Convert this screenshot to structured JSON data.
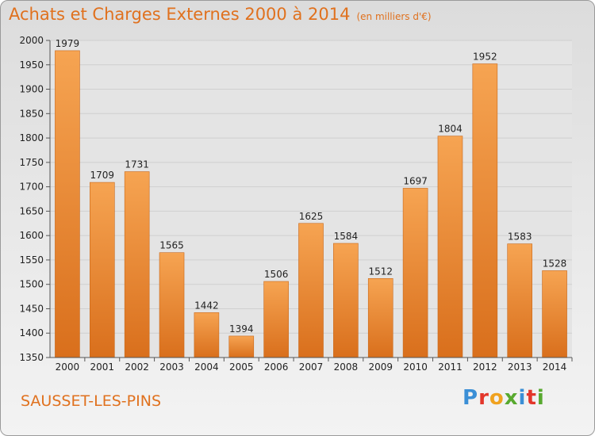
{
  "header": {
    "title": "Achats et Charges Externes 2000 à 2014",
    "subtitle": "(en milliers d'€)"
  },
  "footer": {
    "commune": "SAUSSET-LES-PINS",
    "logo_text": "Proxiti"
  },
  "colors": {
    "accent": "#e0711e",
    "bar_light": "#f6a452",
    "bar_dark": "#d96f1c",
    "logo_letters": [
      "#3b8fd6",
      "#e3362b",
      "#f0a21f",
      "#58a92f",
      "#3b8fd6",
      "#e3362b",
      "#58a92f"
    ]
  },
  "chart_data": {
    "type": "bar",
    "title": "Achats et Charges Externes 2000 à 2014",
    "subtitle": "(en milliers d'€)",
    "categories": [
      "2000",
      "2001",
      "2002",
      "2003",
      "2004",
      "2005",
      "2006",
      "2007",
      "2008",
      "2009",
      "2010",
      "2011",
      "2012",
      "2013",
      "2014"
    ],
    "values": [
      1979,
      1709,
      1731,
      1565,
      1442,
      1394,
      1506,
      1625,
      1584,
      1512,
      1697,
      1804,
      1952,
      1583,
      1528
    ],
    "ylim": [
      1350,
      2000
    ],
    "yticks": [
      1350,
      1400,
      1450,
      1500,
      1550,
      1600,
      1650,
      1700,
      1750,
      1800,
      1850,
      1900,
      1950,
      2000
    ],
    "grid": true
  }
}
